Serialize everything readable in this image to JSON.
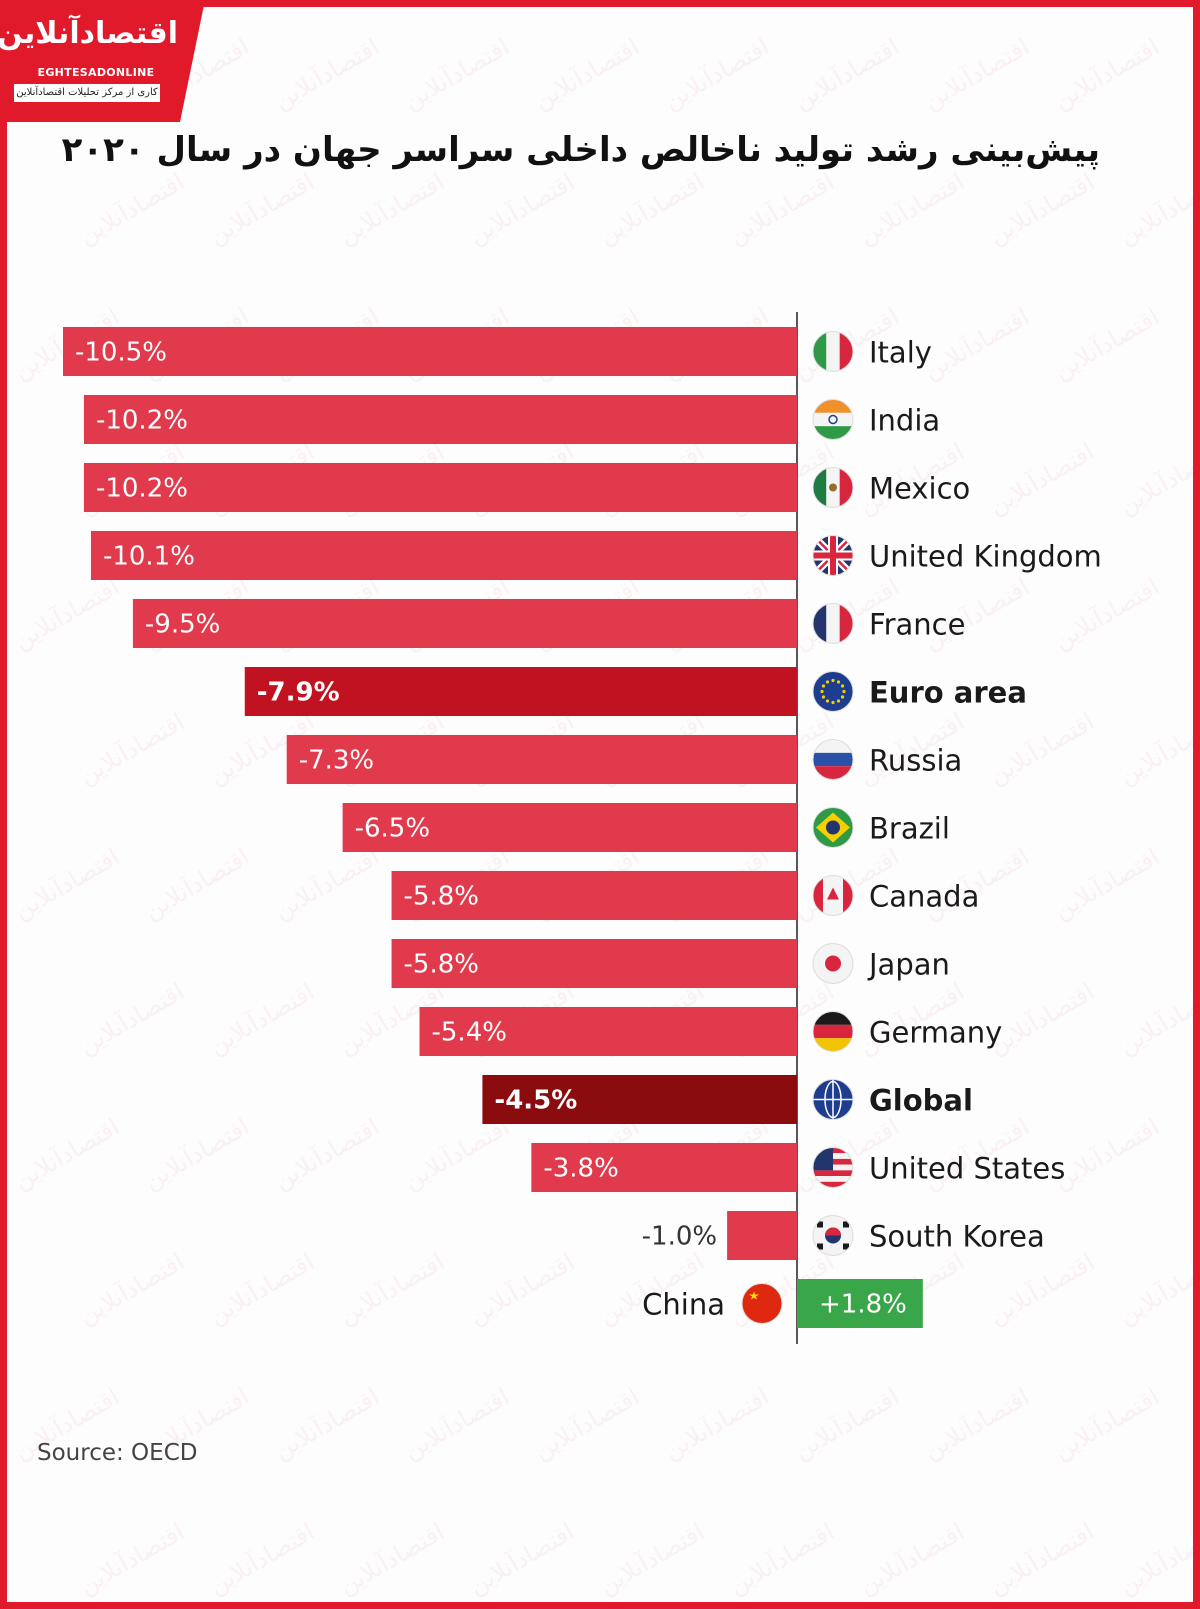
{
  "header": {
    "logo_name": "اقتصادآنلاین",
    "logo_latin": "EGHTESADONLINE",
    "logo_tagline": "کاری از مرکز تحلیلات اقتصادآنلاین"
  },
  "chart_data": {
    "type": "bar",
    "orientation": "horizontal",
    "title": "پیش‌بینی رشد تولید ناخالص داخلی سراسر جهان در سال ۲۰۲۰",
    "categories": [
      "Italy",
      "India",
      "Mexico",
      "United Kingdom",
      "France",
      "Euro area",
      "Russia",
      "Brazil",
      "Canada",
      "Japan",
      "Germany",
      "Global",
      "United States",
      "South Korea",
      "China"
    ],
    "values": [
      -10.5,
      -10.2,
      -10.2,
      -10.1,
      -9.5,
      -7.9,
      -7.3,
      -6.5,
      -5.8,
      -5.8,
      -5.4,
      -4.5,
      -3.8,
      -1.0,
      1.8
    ],
    "value_labels": [
      "-10.5%",
      "-10.2%",
      "-10.2%",
      "-10.1%",
      "-9.5%",
      "-7.9%",
      "-7.3%",
      "-6.5%",
      "-5.8%",
      "-5.8%",
      "-5.4%",
      "-4.5%",
      "-3.8%",
      "-1.0%",
      "+1.8%"
    ],
    "highlighted": [
      "Euro area",
      "Global"
    ],
    "xlim": [
      -10.5,
      1.8
    ],
    "grid": false,
    "legend": "none",
    "colors": {
      "negative": "#e23a4d",
      "euro_area": "#c01220",
      "global": "#8a0c0f",
      "positive": "#3aa64a"
    },
    "flag_icons": [
      "italy-flag-icon",
      "india-flag-icon",
      "mexico-flag-icon",
      "uk-flag-icon",
      "france-flag-icon",
      "eu-flag-icon",
      "russia-flag-icon",
      "brazil-flag-icon",
      "canada-flag-icon",
      "japan-flag-icon",
      "germany-flag-icon",
      "globe-icon",
      "usa-flag-icon",
      "south-korea-flag-icon",
      "china-flag-icon"
    ]
  },
  "footer": {
    "source": "Source: OECD"
  }
}
